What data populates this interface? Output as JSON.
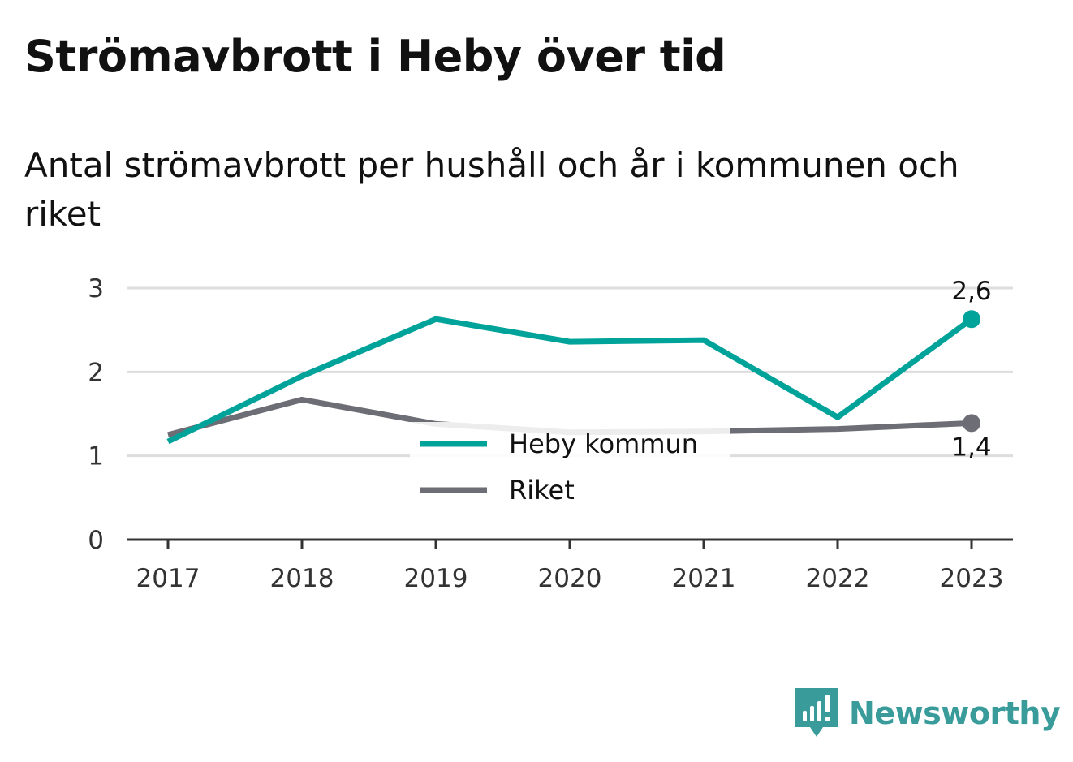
{
  "header": {
    "title": "Strömavbrott i Heby över tid",
    "subtitle": "Antal strömavbrott per hushåll och år i kommunen och riket"
  },
  "brand": {
    "name": "Newsworthy",
    "icon": "bar-chart-speech-bubble-icon",
    "color": "#3a9b9b"
  },
  "chart_data": {
    "type": "line",
    "x": [
      "2017",
      "2018",
      "2019",
      "2020",
      "2021",
      "2022",
      "2023"
    ],
    "ylim": [
      0,
      3
    ],
    "yticks": [
      "0",
      "1",
      "2",
      "3"
    ],
    "grid": true,
    "legend_position": "center",
    "series": [
      {
        "name": "Heby kommun",
        "color": "#00a39a",
        "values": [
          1.17,
          1.95,
          2.63,
          2.36,
          2.38,
          1.46,
          2.63
        ],
        "end_label": "2,6"
      },
      {
        "name": "Riket",
        "color": "#6d6d75",
        "values": [
          1.25,
          1.67,
          1.38,
          1.28,
          1.29,
          1.32,
          1.39
        ],
        "end_label": "1,4"
      }
    ]
  }
}
